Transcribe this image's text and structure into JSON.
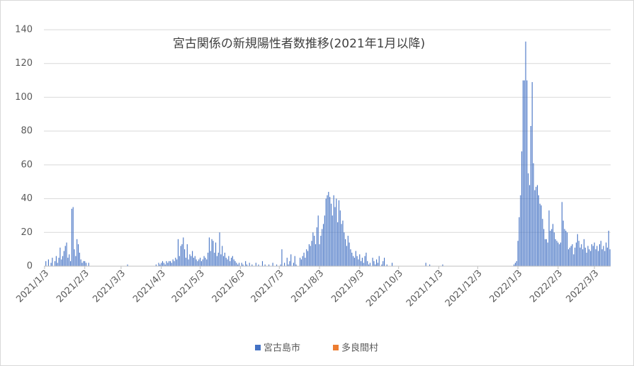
{
  "chart_data": {
    "type": "bar",
    "stacked": true,
    "title": "宮古関係の新規陽性者数推移(2021年1月以降)",
    "categories": [
      "2021/1/3",
      null,
      null,
      null,
      null,
      null,
      null,
      null,
      null,
      null,
      null,
      null,
      null,
      null,
      null,
      null,
      null,
      null,
      null,
      null,
      null,
      null,
      null,
      null,
      null,
      null,
      null,
      null,
      null,
      null,
      null,
      "2021/2/3",
      null,
      null,
      null,
      null,
      null,
      null,
      null,
      null,
      null,
      null,
      null,
      null,
      null,
      null,
      null,
      null,
      null,
      null,
      null,
      null,
      null,
      null,
      null,
      null,
      null,
      null,
      null,
      "2021/3/3",
      null,
      null,
      null,
      null,
      null,
      null,
      null,
      null,
      null,
      null,
      null,
      null,
      null,
      null,
      null,
      null,
      null,
      null,
      null,
      null,
      null,
      null,
      null,
      null,
      null,
      null,
      null,
      null,
      null,
      null,
      "2021/4/3",
      null,
      null,
      null,
      null,
      null,
      null,
      null,
      null,
      null,
      null,
      null,
      null,
      null,
      null,
      null,
      null,
      null,
      null,
      null,
      null,
      null,
      null,
      null,
      null,
      null,
      null,
      null,
      null,
      null,
      "2021/5/3",
      null,
      null,
      null,
      null,
      null,
      null,
      null,
      null,
      null,
      null,
      null,
      null,
      null,
      null,
      null,
      null,
      null,
      null,
      null,
      null,
      null,
      null,
      null,
      null,
      null,
      null,
      null,
      null,
      null,
      null,
      "2021/6/3",
      null,
      null,
      null,
      null,
      null,
      null,
      null,
      null,
      null,
      null,
      null,
      null,
      null,
      null,
      null,
      null,
      null,
      null,
      null,
      null,
      null,
      null,
      null,
      null,
      null,
      null,
      null,
      null,
      null,
      "2021/7/3",
      null,
      null,
      null,
      null,
      null,
      null,
      null,
      null,
      null,
      null,
      null,
      null,
      null,
      null,
      null,
      null,
      null,
      null,
      null,
      null,
      null,
      null,
      null,
      null,
      null,
      null,
      null,
      null,
      null,
      null,
      "2021/8/3",
      null,
      null,
      null,
      null,
      null,
      null,
      null,
      null,
      null,
      null,
      null,
      null,
      null,
      null,
      null,
      null,
      null,
      null,
      null,
      null,
      null,
      null,
      null,
      null,
      null,
      null,
      null,
      null,
      null,
      null,
      "2021/9/3",
      null,
      null,
      null,
      null,
      null,
      null,
      null,
      null,
      null,
      null,
      null,
      null,
      null,
      null,
      null,
      null,
      null,
      null,
      null,
      null,
      null,
      null,
      null,
      null,
      null,
      null,
      null,
      null,
      null,
      "2021/10/3",
      null,
      null,
      null,
      null,
      null,
      null,
      null,
      null,
      null,
      null,
      null,
      null,
      null,
      null,
      null,
      null,
      null,
      null,
      null,
      null,
      null,
      null,
      null,
      null,
      null,
      null,
      null,
      null,
      null,
      null,
      "2021/11/3",
      null,
      null,
      null,
      null,
      null,
      null,
      null,
      null,
      null,
      null,
      null,
      null,
      null,
      null,
      null,
      null,
      null,
      null,
      null,
      null,
      null,
      null,
      null,
      null,
      null,
      null,
      null,
      null,
      null,
      "2021/12/3",
      null,
      null,
      null,
      null,
      null,
      null,
      null,
      null,
      null,
      null,
      null,
      null,
      null,
      null,
      null,
      null,
      null,
      null,
      null,
      null,
      null,
      null,
      null,
      null,
      null,
      null,
      null,
      null,
      null,
      null,
      "2022/1/3",
      null,
      null,
      null,
      null,
      null,
      null,
      null,
      null,
      null,
      null,
      null,
      null,
      null,
      null,
      null,
      null,
      null,
      null,
      null,
      null,
      null,
      null,
      null,
      null,
      null,
      null,
      null,
      null,
      null,
      null,
      "2022/2/3",
      null,
      null,
      null,
      null,
      null,
      null,
      null,
      null,
      null,
      null,
      null,
      null,
      null,
      null,
      null,
      null,
      null,
      null,
      null,
      null,
      null,
      null,
      null,
      null,
      null,
      null,
      null,
      "2022/3/3",
      null,
      null,
      null,
      null,
      null,
      null,
      null,
      null,
      null,
      null,
      null,
      null
    ],
    "series": [
      {
        "name": "宮古島市",
        "color": "#4472c4",
        "values": [
          0,
          3,
          0,
          4,
          0,
          2,
          5,
          0,
          3,
          6,
          2,
          5,
          11,
          4,
          6,
          9,
          12,
          14,
          5,
          7,
          3,
          34,
          35,
          10,
          6,
          16,
          13,
          8,
          4,
          2,
          3,
          3,
          2,
          0,
          2,
          0,
          0,
          0,
          0,
          0,
          0,
          0,
          0,
          0,
          0,
          0,
          0,
          0,
          0,
          0,
          0,
          0,
          0,
          0,
          0,
          0,
          0,
          0,
          0,
          0,
          0,
          0,
          0,
          0,
          1,
          0,
          0,
          0,
          0,
          0,
          0,
          0,
          0,
          0,
          0,
          0,
          0,
          0,
          0,
          0,
          0,
          0,
          0,
          0,
          0,
          0,
          1,
          0,
          2,
          1,
          2,
          3,
          2,
          1,
          3,
          2,
          3,
          3,
          2,
          4,
          3,
          5,
          4,
          16,
          6,
          12,
          13,
          17,
          10,
          5,
          13,
          4,
          7,
          6,
          9,
          5,
          6,
          4,
          3,
          4,
          5,
          3,
          4,
          6,
          5,
          4,
          8,
          17,
          9,
          16,
          15,
          8,
          14,
          6,
          8,
          20,
          7,
          12,
          6,
          8,
          5,
          4,
          6,
          3,
          5,
          6,
          4,
          3,
          2,
          1,
          2,
          0,
          2,
          1,
          0,
          3,
          1,
          0,
          2,
          0,
          1,
          0,
          0,
          2,
          0,
          1,
          0,
          0,
          3,
          0,
          1,
          0,
          0,
          1,
          0,
          0,
          2,
          0,
          0,
          1,
          0,
          0,
          1,
          10,
          0,
          2,
          0,
          5,
          1,
          3,
          7,
          0,
          2,
          6,
          1,
          0,
          0,
          5,
          4,
          6,
          8,
          5,
          10,
          9,
          13,
          12,
          15,
          20,
          18,
          13,
          23,
          30,
          13,
          18,
          22,
          25,
          30,
          40,
          42,
          44,
          41,
          37,
          30,
          42,
          35,
          40,
          26,
          39,
          33,
          25,
          27,
          20,
          16,
          12,
          18,
          14,
          10,
          8,
          6,
          5,
          9,
          6,
          4,
          7,
          3,
          5,
          2,
          6,
          8,
          3,
          1,
          2,
          0,
          5,
          3,
          1,
          4,
          2,
          6,
          0,
          1,
          3,
          5,
          0,
          1,
          0,
          0,
          0,
          2,
          0,
          0,
          0,
          0,
          0,
          0,
          0,
          0,
          0,
          0,
          0,
          0,
          0,
          0,
          0,
          0,
          0,
          0,
          0,
          0,
          0,
          0,
          0,
          0,
          0,
          2,
          0,
          0,
          1,
          0,
          0,
          0,
          0,
          0,
          0,
          0,
          0,
          0,
          1,
          0,
          0,
          0,
          0,
          0,
          0,
          0,
          0,
          0,
          0,
          0,
          0,
          0,
          0,
          0,
          0,
          0,
          0,
          0,
          0,
          0,
          0,
          0,
          0,
          0,
          0,
          0,
          0,
          0,
          0,
          0,
          0,
          0,
          0,
          0,
          0,
          0,
          0,
          0,
          0,
          0,
          0,
          0,
          0,
          0,
          0,
          0,
          0,
          0,
          0,
          0,
          0,
          0,
          0,
          1,
          2,
          3,
          15,
          29,
          42,
          68,
          110,
          110,
          133,
          110,
          55,
          48,
          83,
          109,
          61,
          45,
          47,
          48,
          42,
          37,
          36,
          28,
          22,
          16,
          16,
          14,
          33,
          21,
          22,
          25,
          20,
          16,
          15,
          14,
          13,
          14,
          38,
          27,
          22,
          21,
          20,
          10,
          11,
          12,
          13,
          7,
          11,
          14,
          19,
          15,
          11,
          13,
          10,
          16,
          11,
          8,
          12,
          10,
          9,
          13,
          12,
          14,
          10,
          12,
          9,
          13,
          15,
          10,
          12,
          9,
          14,
          11,
          21,
          10
        ]
      },
      {
        "name": "多良間村",
        "color": "#ed7d31",
        "values": [
          0,
          0,
          0,
          0,
          0,
          0,
          0,
          0,
          0,
          0,
          0,
          0,
          0,
          0,
          0,
          0,
          0,
          0,
          0,
          0,
          0,
          0,
          0,
          0,
          0,
          0,
          0,
          0,
          0,
          0,
          0,
          0,
          0,
          0,
          0,
          0,
          0,
          0,
          0,
          0,
          0,
          0,
          0,
          0,
          0,
          0,
          0,
          0,
          0,
          0,
          0,
          0,
          0,
          0,
          0,
          0,
          0,
          0,
          0,
          0,
          0,
          0,
          0,
          0,
          0,
          0,
          0,
          0,
          0,
          0,
          0,
          0,
          0,
          0,
          0,
          0,
          0,
          0,
          0,
          0,
          0,
          0,
          0,
          0,
          0,
          0,
          0,
          0,
          0,
          0,
          0,
          0,
          0,
          0,
          0,
          0,
          0,
          0,
          0,
          0,
          0,
          0,
          0,
          0,
          0,
          0,
          0,
          0,
          0,
          0,
          0,
          0,
          0,
          0,
          0,
          0,
          0,
          0,
          0,
          0,
          0,
          0,
          0,
          0,
          0,
          0,
          0,
          0,
          0,
          0,
          0,
          0,
          0,
          0,
          0,
          0,
          0,
          0,
          0,
          0,
          0,
          0,
          0,
          0,
          0,
          0,
          0,
          0,
          0,
          0,
          0,
          0,
          0,
          0,
          0,
          0,
          0,
          0,
          0,
          0,
          0,
          0,
          0,
          0,
          0,
          0,
          0,
          0,
          0,
          0,
          0,
          0,
          0,
          0,
          0,
          0,
          0,
          0,
          0,
          0,
          0,
          0,
          0,
          0,
          0,
          0,
          0,
          0,
          0,
          0,
          0,
          0,
          0,
          0,
          0,
          0,
          0,
          0,
          0,
          0,
          0,
          0,
          0,
          0,
          0,
          0,
          0,
          0,
          0,
          0,
          0,
          0,
          0,
          0,
          0,
          0,
          0,
          0,
          0,
          0,
          0,
          0,
          0,
          0,
          0,
          0,
          0,
          0,
          0,
          0,
          0,
          0,
          0,
          0,
          0,
          0,
          0,
          0,
          0,
          0,
          0,
          0,
          0,
          0,
          0,
          0,
          0,
          0,
          0,
          0,
          0,
          0,
          0,
          0,
          0,
          0,
          0,
          0,
          0,
          0,
          0,
          0,
          0,
          0,
          0,
          0,
          0,
          0,
          0,
          0,
          0,
          0,
          0,
          0,
          0,
          0,
          0,
          0,
          0,
          0,
          0,
          0,
          0,
          0,
          0,
          0,
          0,
          0,
          0,
          0,
          0,
          0,
          0,
          0,
          0,
          0,
          0,
          0,
          0,
          0,
          0,
          0,
          0,
          0,
          0,
          0,
          0,
          0,
          0,
          0,
          0,
          0,
          0,
          0,
          0,
          0,
          0,
          0,
          0,
          0,
          0,
          0,
          0,
          0,
          0,
          0,
          0,
          0,
          0,
          0,
          0,
          0,
          0,
          0,
          0,
          0,
          0,
          0,
          0,
          0,
          0,
          0,
          0,
          0,
          0,
          0,
          0,
          0,
          0,
          0,
          0,
          0,
          0,
          0,
          0,
          0,
          0,
          0,
          0,
          0,
          0,
          0,
          0,
          0,
          0,
          0,
          0,
          0,
          0,
          0,
          0,
          0,
          0,
          0,
          0,
          0,
          0,
          0,
          0,
          0,
          0,
          0,
          0,
          0,
          0,
          0,
          0,
          0,
          0,
          0,
          0,
          0,
          0,
          0,
          0,
          0,
          0,
          0,
          0,
          0,
          0,
          0,
          0,
          0,
          0,
          0,
          0,
          0,
          0,
          0,
          0,
          0,
          0,
          0,
          0,
          0,
          0,
          0,
          0,
          0,
          0,
          0,
          0,
          0,
          0,
          0,
          0,
          0,
          0,
          0,
          0,
          0,
          0,
          0,
          0,
          0,
          0
        ]
      }
    ],
    "ylim": [
      0,
      140
    ],
    "yticks": [
      0,
      20,
      40,
      60,
      80,
      100,
      120,
      140
    ],
    "grid": true,
    "legend": "bottom"
  }
}
